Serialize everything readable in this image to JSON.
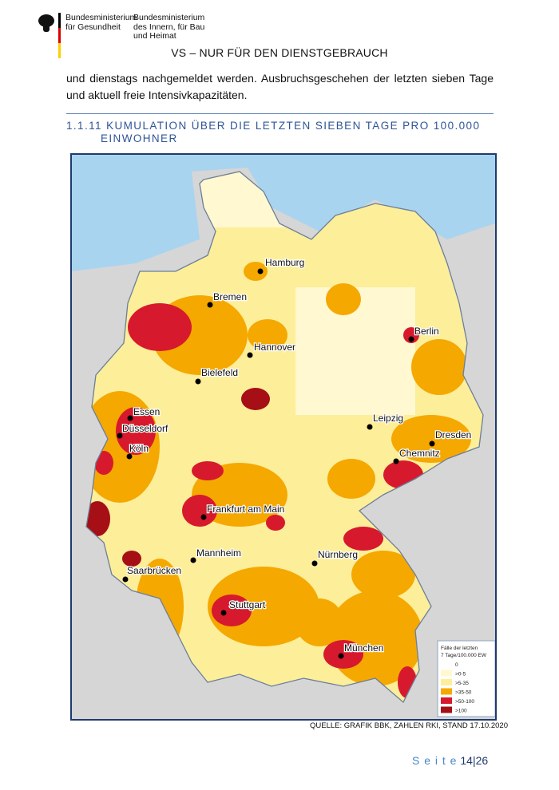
{
  "header": {
    "ministry1": [
      "Bundesministerium",
      "für Gesundheit"
    ],
    "ministry2": [
      "Bundesministerium",
      "des Innern, für Bau",
      "und Heimat"
    ],
    "classification": "VS – NUR FÜR DEN DIENSTGEBRAUCH"
  },
  "body_text": "und dienstags nachgemeldet werden. Ausbruchsgeschehen der letzten sieben Tage und aktuell freie Intensivkapazitäten.",
  "section": {
    "number": "1.1.11",
    "title_line1": "KUMULATION ÜBER DIE LETZTEN SIEBEN TAGE PRO 100.000",
    "title_line2": "EINWOHNER"
  },
  "map": {
    "cities": [
      "Hamburg",
      "Bremen",
      "Berlin",
      "Hannover",
      "Bielefeld",
      "Essen",
      "Düsseldorf",
      "Köln",
      "Leipzig",
      "Dresden",
      "Chemnitz",
      "Frankfurt am Main",
      "Mannheim",
      "Nürnberg",
      "Saarbrücken",
      "Stuttgart",
      "München"
    ],
    "legend": {
      "title1": "Fälle der letzten",
      "title2": "7 Tage/100.000 EW",
      "items": [
        {
          "label": "0",
          "color": "#ffffff"
        },
        {
          "label": ">0-5",
          "color": "#fff8d0"
        },
        {
          "label": ">5-35",
          "color": "#fdee9a"
        },
        {
          "label": ">35-50",
          "color": "#f5a800"
        },
        {
          "label": ">50-100",
          "color": "#d7192d"
        },
        {
          "label": ">100",
          "color": "#a50f15"
        }
      ]
    }
  },
  "source": "QUELLE: GRAFIK BBK, ZAHLEN RKI, STAND 17.10.2020",
  "footer": {
    "seite": "S e i t e",
    "page": "14",
    "total": "26"
  }
}
